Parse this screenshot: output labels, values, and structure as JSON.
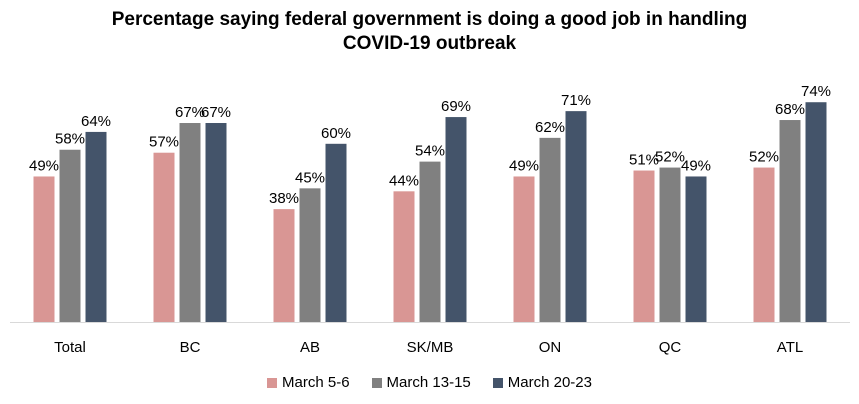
{
  "chart_data": {
    "type": "bar",
    "title": "Percentage saying federal government is doing a good job in handling COVID-19 outbreak",
    "title_lines": [
      "Percentage saying federal government is doing a good job in handling",
      "COVID-19 outbreak"
    ],
    "categories": [
      "Total",
      "BC",
      "AB",
      "SK/MB",
      "ON",
      "QC",
      "ATL"
    ],
    "series": [
      {
        "name": "March 5-6",
        "color": "#D99694",
        "values": [
          49,
          57,
          38,
          44,
          49,
          51,
          52
        ]
      },
      {
        "name": "March 13-15",
        "color": "#808080",
        "values": [
          58,
          67,
          45,
          54,
          62,
          52,
          68
        ]
      },
      {
        "name": "March 20-23",
        "color": "#44546A",
        "values": [
          64,
          67,
          60,
          69,
          71,
          49,
          74
        ]
      }
    ],
    "value_format": "%",
    "ylim": [
      0,
      100
    ],
    "grid": false,
    "legend_position": "bottom",
    "xlabel": "",
    "ylabel": ""
  }
}
